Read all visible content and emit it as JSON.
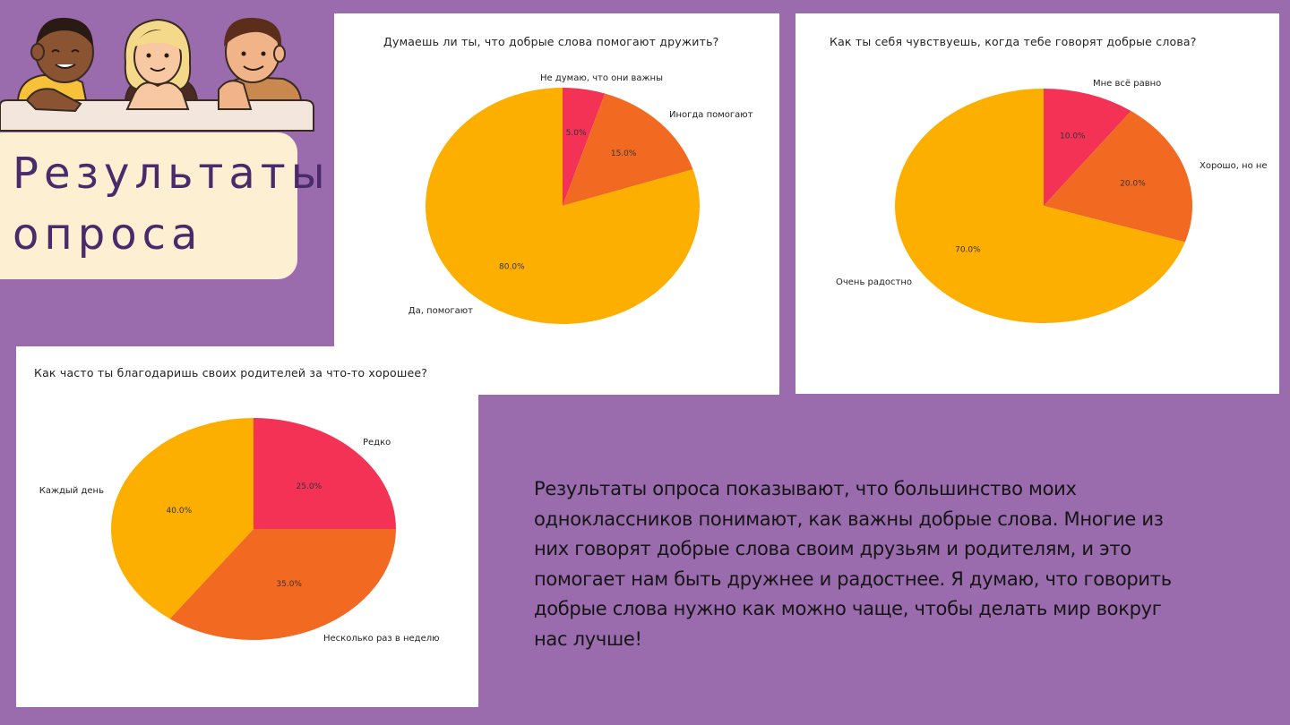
{
  "title": "Результаты\nопроса",
  "summary": " Результаты опроса показывают, что большинство моих одноклассников понимают, как важны добрые слова. Многие из них говорят добрые слова своим друзьям и родителям, и это помогает нам быть дружнее и радостнее. Я думаю, что говорить добрые слова нужно как можно чаще, чтобы делать мир вокруг нас лучше!",
  "colors": {
    "background": "#9a6cae",
    "card": "#fdf0d2",
    "title": "#4a2a6a",
    "pie_pink": "#f43256",
    "pie_orange": "#f26a21",
    "pie_yellow": "#fdaf00"
  },
  "chart_data": [
    {
      "type": "pie",
      "title": "Думаешь ли ты, что добрые слова помогают дружить?",
      "labels": [
        "Не думаю, что они важны",
        "Иногда помогают",
        "Да, помогают"
      ],
      "values": [
        5.0,
        15.0,
        80.0
      ],
      "value_labels": [
        "5.0%",
        "15.0%",
        "80.0%"
      ],
      "colors": [
        "#f43256",
        "#f26a21",
        "#fdaf00"
      ],
      "start": "top, clockwise"
    },
    {
      "type": "pie",
      "title": "Как ты себя чувствуешь, когда тебе говорят добрые слова?",
      "labels": [
        "Мне всё равно",
        "Хорошо, но не",
        "Очень радостно"
      ],
      "values": [
        10.0,
        20.0,
        70.0
      ],
      "value_labels": [
        "10.0%",
        "20.0%",
        "70.0%"
      ],
      "colors": [
        "#f43256",
        "#f26a21",
        "#fdaf00"
      ],
      "start": "top, clockwise"
    },
    {
      "type": "pie",
      "title": "Как часто ты благодаришь своих родителей за что-то хорошее?",
      "labels": [
        "Редко",
        "Несколько раз в неделю",
        "Каждый день"
      ],
      "values": [
        25.0,
        35.0,
        40.0
      ],
      "value_labels": [
        "25.0%",
        "35.0%",
        "40.0%"
      ],
      "colors": [
        "#f43256",
        "#f26a21",
        "#fdaf00"
      ],
      "start": "top, clockwise"
    }
  ]
}
